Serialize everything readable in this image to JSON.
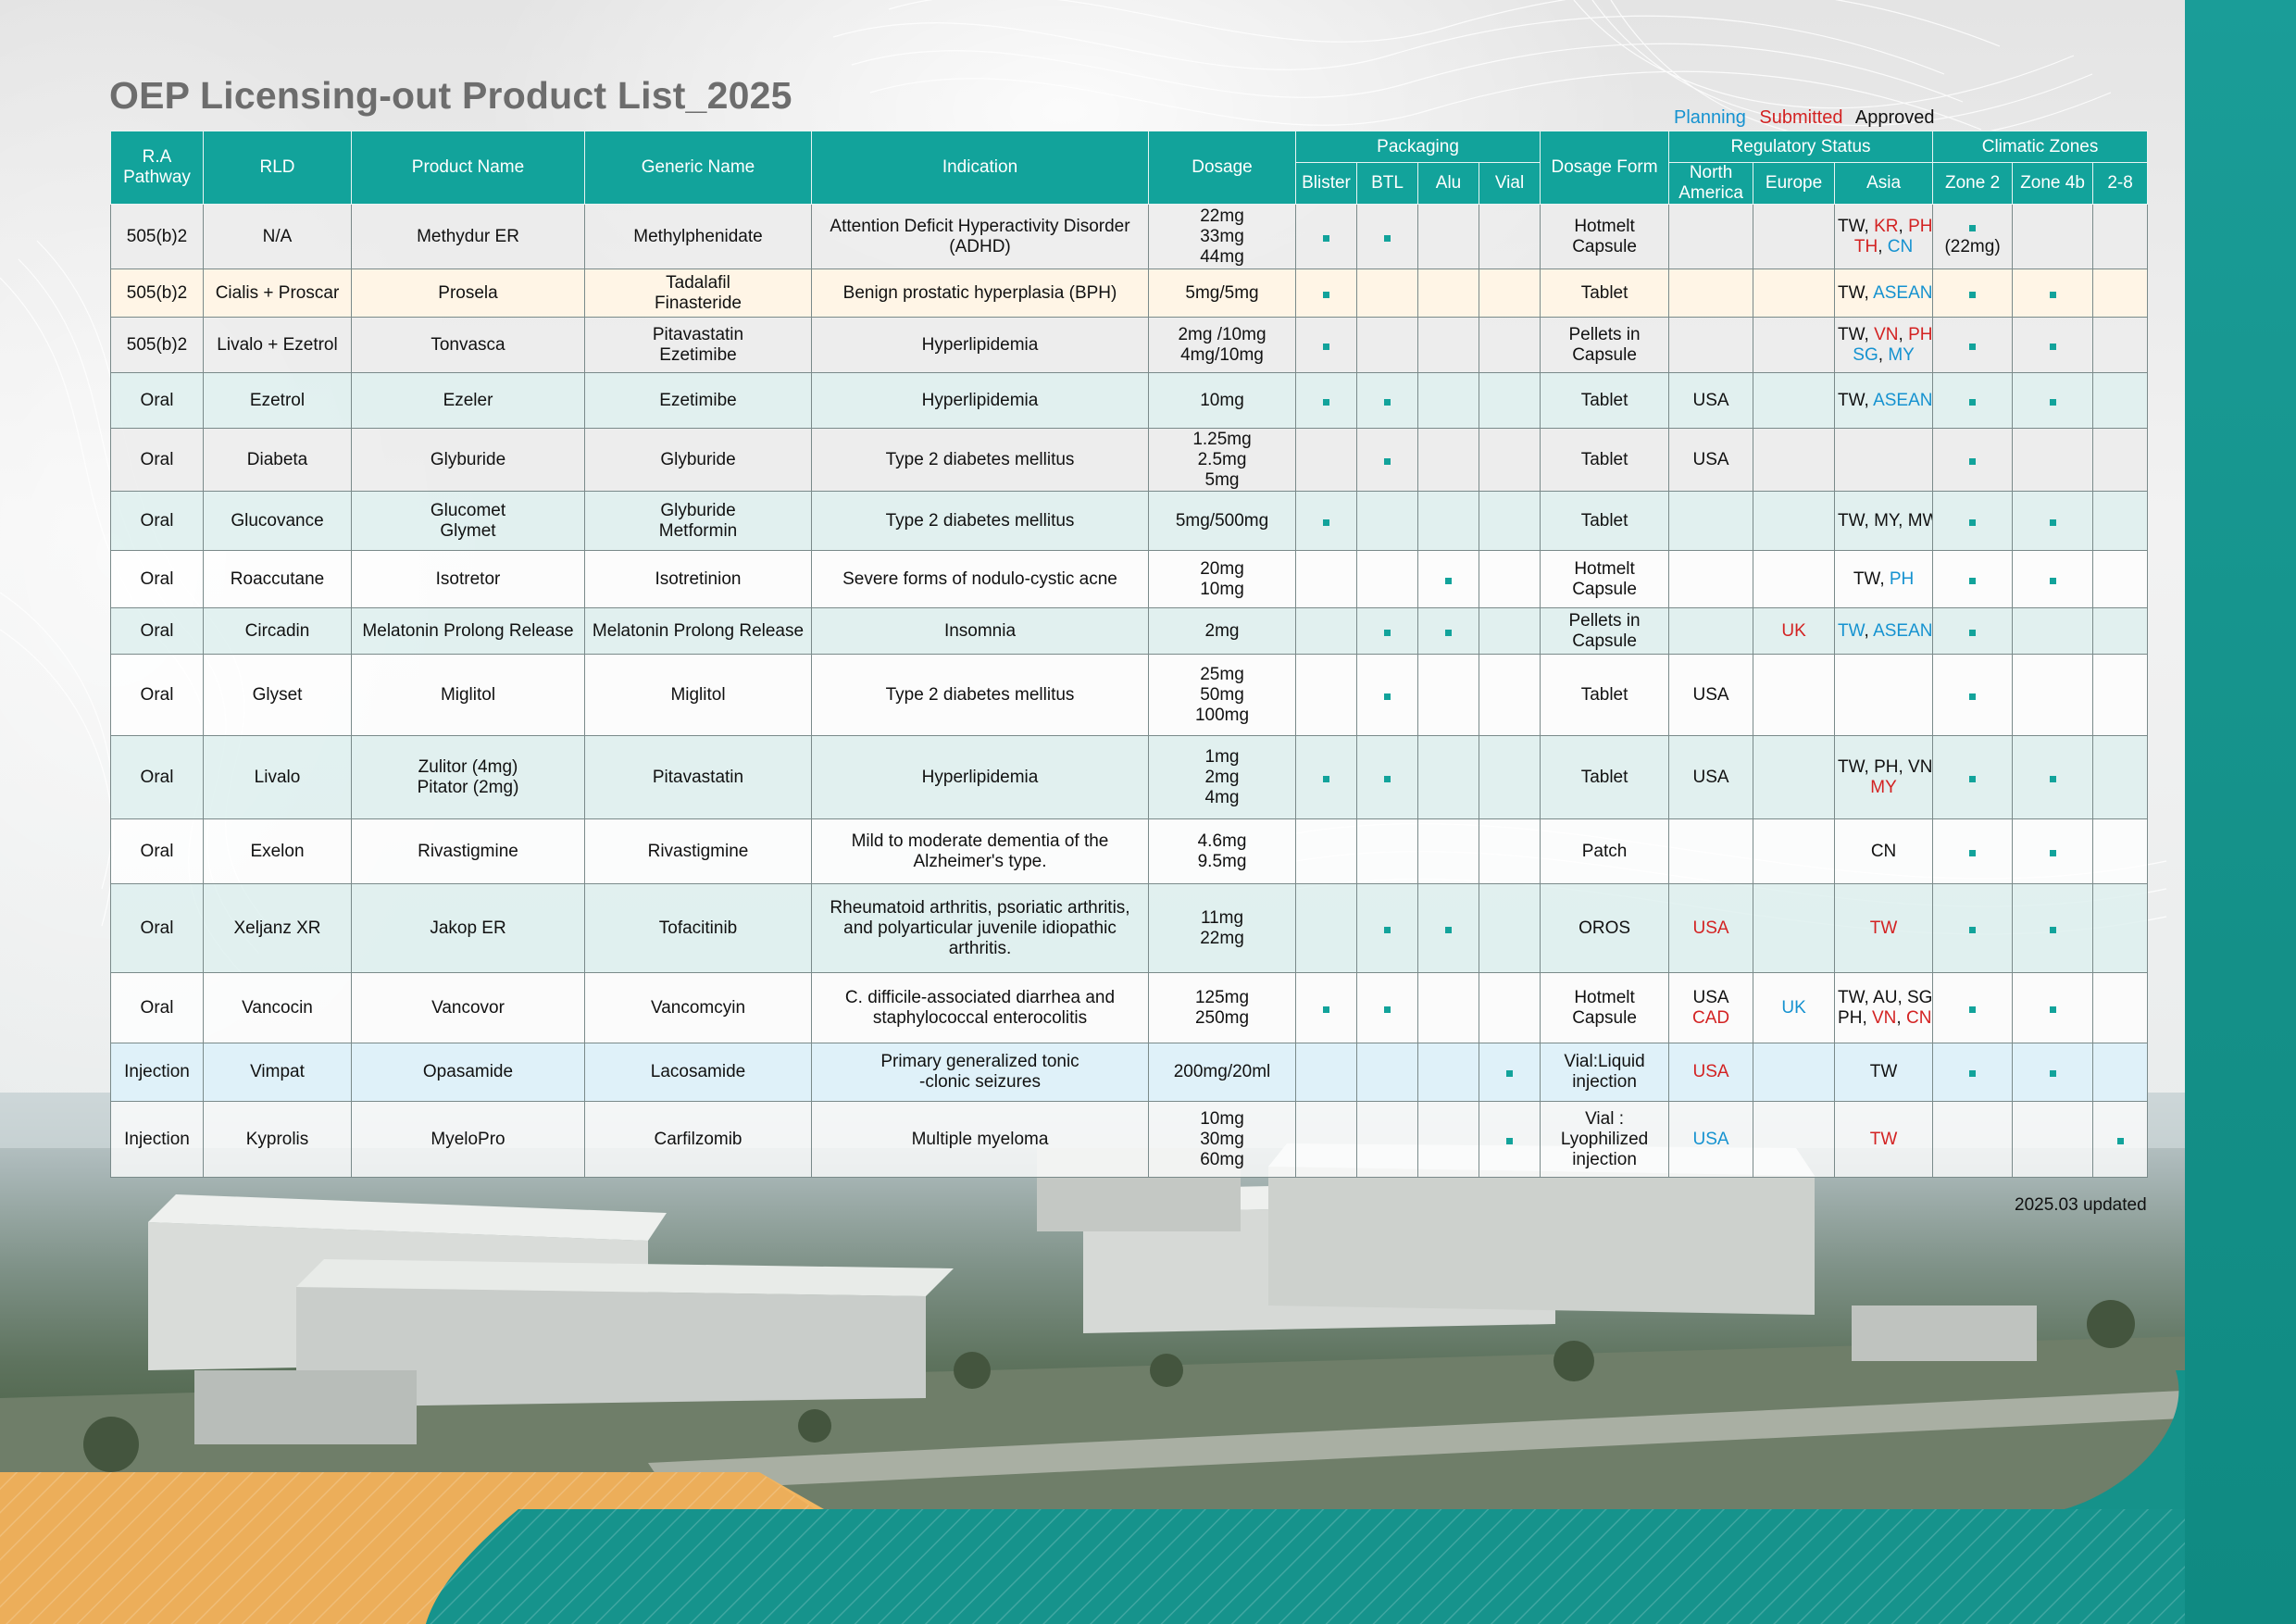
{
  "title": "OEP Licensing-out Product List_2025",
  "legend": {
    "planning": "Planning",
    "submitted": "Submitted",
    "approved": "Approved",
    "colors": {
      "planning": "#1592d0",
      "submitted": "#d32222",
      "approved": "#111111"
    }
  },
  "accent_color": "#12a39b",
  "header": {
    "ra_pathway": "R.A\nPathway",
    "rld": "RLD",
    "product_name": "Product Name",
    "generic_name": "Generic Name",
    "indication": "Indication",
    "dosage": "Dosage",
    "packaging": "Packaging",
    "blister": "Blister",
    "btl": "BTL",
    "alu": "Alu",
    "vial": "Vial",
    "dosage_form": "Dosage Form",
    "regulatory_status": "Regulatory Status",
    "north_america": "North\nAmerica",
    "europe": "Europe",
    "asia": "Asia",
    "climatic_zones": "Climatic Zones",
    "zone2": "Zone 2",
    "zone4b": "Zone 4b",
    "zone28": "2-8"
  },
  "rows": [
    {
      "style": "grey",
      "ra": "505(b)2",
      "rld": "N/A",
      "product": "Methydur  ER",
      "generic": "Methylphenidate",
      "indication": "Attention Deficit Hyperactivity Disorder\n(ADHD)",
      "dosage": "22mg\n33mg\n44mg",
      "blister": true,
      "btl": true,
      "alu": false,
      "vial": false,
      "form": "Hotmelt\nCapsule",
      "na": [],
      "eu": [],
      "asia": [
        [
          [
            "TW",
            "a"
          ],
          [
            ", ",
            "a"
          ],
          [
            "KR",
            "s"
          ],
          [
            ", ",
            "a"
          ],
          [
            "PH",
            "s"
          ],
          [
            ",",
            "a"
          ]
        ],
        [
          [
            "TH",
            "s"
          ],
          [
            ", ",
            "a"
          ],
          [
            "CN",
            "p"
          ]
        ]
      ],
      "zone2": true,
      "zone2_note": "(22mg)",
      "zone4b": false,
      "zone28": false
    },
    {
      "style": "cream",
      "ra": "505(b)2",
      "rld": "Cialis + Proscar",
      "product": "Prosela",
      "generic": "Tadalafil\nFinasteride",
      "indication": "Benign prostatic hyperplasia (BPH)",
      "dosage": "5mg/5mg",
      "blister": true,
      "btl": false,
      "alu": false,
      "vial": false,
      "form": "Tablet",
      "na": [],
      "eu": [],
      "asia": [
        [
          [
            "TW",
            "a"
          ],
          [
            ", ",
            "a"
          ],
          [
            "ASEAN",
            "p"
          ]
        ]
      ],
      "zone2": true,
      "zone2_note": "",
      "zone4b": true,
      "zone28": false
    },
    {
      "style": "grey",
      "ra": "505(b)2",
      "rld": "Livalo + Ezetrol",
      "product": "Tonvasca",
      "generic": "Pitavastatin\nEzetimibe",
      "indication": "Hyperlipidemia",
      "dosage": "2mg /10mg\n4mg/10mg",
      "blister": true,
      "btl": false,
      "alu": false,
      "vial": false,
      "form": "Pellets in\nCapsule",
      "na": [],
      "eu": [],
      "asia": [
        [
          [
            "TW",
            "a"
          ],
          [
            ", ",
            "a"
          ],
          [
            "VN",
            "s"
          ],
          [
            ", ",
            "a"
          ],
          [
            "PH",
            "s"
          ]
        ],
        [
          [
            "SG",
            "p"
          ],
          [
            ", ",
            "a"
          ],
          [
            "MY",
            "p"
          ]
        ]
      ],
      "zone2": true,
      "zone2_note": "",
      "zone4b": true,
      "zone28": false
    },
    {
      "style": "tint",
      "ra": "Oral",
      "rld": "Ezetrol",
      "product": "Ezeler",
      "generic": "Ezetimibe",
      "indication": "Hyperlipidemia",
      "dosage": "10mg",
      "blister": true,
      "btl": true,
      "alu": false,
      "vial": false,
      "form": "Tablet",
      "na": [
        [
          [
            "USA",
            "a"
          ]
        ]
      ],
      "eu": [],
      "asia": [
        [
          [
            "TW",
            "a"
          ],
          [
            ", ",
            "a"
          ],
          [
            "ASEAN",
            "p"
          ]
        ]
      ],
      "zone2": true,
      "zone2_note": "",
      "zone4b": true,
      "zone28": false
    },
    {
      "style": "grey",
      "ra": "Oral",
      "rld": "Diabeta",
      "product": "Glyburide",
      "generic": "Glyburide",
      "indication": "Type 2 diabetes mellitus",
      "dosage": "1.25mg\n2.5mg\n5mg",
      "blister": false,
      "btl": true,
      "alu": false,
      "vial": false,
      "form": "Tablet",
      "na": [
        [
          [
            "USA",
            "a"
          ]
        ]
      ],
      "eu": [],
      "asia": [],
      "zone2": true,
      "zone2_note": "",
      "zone4b": false,
      "zone28": false
    },
    {
      "style": "tint",
      "ra": "Oral",
      "rld": "Glucovance",
      "product": "Glucomet\nGlymet",
      "generic": "Glyburide\nMetformin",
      "indication": "Type 2 diabetes mellitus",
      "dosage": "5mg/500mg",
      "blister": true,
      "btl": false,
      "alu": false,
      "vial": false,
      "form": "Tablet",
      "na": [],
      "eu": [],
      "asia": [
        [
          [
            "TW, MY, MW",
            "a"
          ]
        ]
      ],
      "zone2": true,
      "zone2_note": "",
      "zone4b": true,
      "zone28": false
    },
    {
      "style": "plain",
      "ra": "Oral",
      "rld": "Roaccutane",
      "product": "Isotretor",
      "generic": "Isotretinion",
      "indication": "Severe forms of nodulo-cystic acne",
      "dosage": "20mg\n10mg",
      "blister": false,
      "btl": false,
      "alu": true,
      "vial": false,
      "form": "Hotmelt\nCapsule",
      "na": [],
      "eu": [],
      "asia": [
        [
          [
            "TW",
            "a"
          ],
          [
            ", ",
            "a"
          ],
          [
            "PH",
            "p"
          ]
        ]
      ],
      "zone2": true,
      "zone2_note": "",
      "zone4b": true,
      "zone28": false
    },
    {
      "style": "tint",
      "ra": "Oral",
      "rld": "Circadin",
      "product": "Melatonin Prolong Release",
      "generic": "Melatonin Prolong Release",
      "indication": "Insomnia",
      "dosage": "2mg",
      "blister": false,
      "btl": true,
      "alu": true,
      "vial": false,
      "form": "Pellets in\nCapsule",
      "na": [],
      "eu": [
        [
          [
            "UK",
            "s"
          ]
        ]
      ],
      "asia": [
        [
          [
            "TW",
            "p"
          ],
          [
            ", ",
            "a"
          ],
          [
            "ASEAN",
            "p"
          ]
        ]
      ],
      "zone2": true,
      "zone2_note": "",
      "zone4b": false,
      "zone28": false
    },
    {
      "style": "plain",
      "ra": "Oral",
      "rld": "Glyset",
      "product": "Miglitol",
      "generic": "Miglitol",
      "indication": "Type 2 diabetes mellitus",
      "dosage": "25mg\n50mg\n100mg",
      "blister": false,
      "btl": true,
      "alu": false,
      "vial": false,
      "form": "Tablet",
      "na": [
        [
          [
            "USA",
            "a"
          ]
        ]
      ],
      "eu": [],
      "asia": [],
      "zone2": true,
      "zone2_note": "",
      "zone4b": false,
      "zone28": false
    },
    {
      "style": "tint",
      "ra": "Oral",
      "rld": "Livalo",
      "product": "Zulitor (4mg)\nPitator (2mg)",
      "generic": "Pitavastatin",
      "indication": "Hyperlipidemia",
      "dosage": "1mg\n2mg\n4mg",
      "blister": true,
      "btl": true,
      "alu": false,
      "vial": false,
      "form": "Tablet",
      "na": [
        [
          [
            "USA",
            "a"
          ]
        ]
      ],
      "eu": [],
      "asia": [
        [
          [
            "TW, PH, VN",
            "a"
          ]
        ],
        [
          [
            "MY",
            "s"
          ]
        ]
      ],
      "zone2": true,
      "zone2_note": "",
      "zone4b": true,
      "zone28": false
    },
    {
      "style": "plain",
      "ra": "Oral",
      "rld": "Exelon",
      "product": "Rivastigmine",
      "generic": "Rivastigmine",
      "indication": "Mild to moderate dementia of the\nAlzheimer's type.",
      "dosage": "4.6mg\n9.5mg",
      "blister": false,
      "btl": false,
      "alu": false,
      "vial": false,
      "form": "Patch",
      "na": [],
      "eu": [],
      "asia": [
        [
          [
            "CN",
            "a"
          ]
        ]
      ],
      "zone2": true,
      "zone2_note": "",
      "zone4b": true,
      "zone28": false
    },
    {
      "style": "tint",
      "ra": "Oral",
      "rld": "Xeljanz XR",
      "product": "Jakop ER",
      "generic": "Tofacitinib",
      "indication": "Rheumatoid arthritis, psoriatic arthritis,\nand polyarticular juvenile idiopathic\narthritis.",
      "dosage": "11mg\n22mg",
      "blister": false,
      "btl": true,
      "alu": true,
      "vial": false,
      "form": "OROS",
      "na": [
        [
          [
            "USA",
            "s"
          ]
        ]
      ],
      "eu": [],
      "asia": [
        [
          [
            "TW",
            "s"
          ]
        ]
      ],
      "zone2": true,
      "zone2_note": "",
      "zone4b": true,
      "zone28": false
    },
    {
      "style": "plain",
      "ra": "Oral",
      "rld": "Vancocin",
      "product": "Vancovor",
      "generic": "Vancomcyin",
      "indication": "C. difficile-associated diarrhea and\nstaphylococcal enterocolitis",
      "dosage": "125mg\n250mg",
      "blister": true,
      "btl": true,
      "alu": false,
      "vial": false,
      "form": "Hotmelt\nCapsule",
      "na": [
        [
          [
            "USA",
            "a"
          ]
        ],
        [
          [
            "CAD",
            "s"
          ]
        ]
      ],
      "eu": [
        [
          [
            "UK",
            "p"
          ]
        ]
      ],
      "asia": [
        [
          [
            "TW, AU, SG,",
            "a"
          ]
        ],
        [
          [
            "PH, ",
            "a"
          ],
          [
            "VN",
            "s"
          ],
          [
            ", ",
            "a"
          ],
          [
            "CN",
            "s"
          ]
        ]
      ],
      "zone2": true,
      "zone2_note": "",
      "zone4b": true,
      "zone28": false
    },
    {
      "style": "blue",
      "ra": "Injection",
      "rld": "Vimpat",
      "product": "Opasamide",
      "generic": "Lacosamide",
      "indication": "Primary generalized tonic\n-clonic seizures",
      "dosage": "200mg/20ml",
      "blister": false,
      "btl": false,
      "alu": false,
      "vial": true,
      "form": "Vial:Liquid\ninjection",
      "na": [
        [
          [
            "USA",
            "s"
          ]
        ]
      ],
      "eu": [],
      "asia": [
        [
          [
            "TW",
            "a"
          ]
        ]
      ],
      "zone2": true,
      "zone2_note": "",
      "zone4b": true,
      "zone28": false
    },
    {
      "style": "plain",
      "ra": "Injection",
      "rld": "Kyprolis",
      "product": "MyeloPro",
      "generic": "Carfilzomib",
      "indication": "Multiple myeloma",
      "dosage": "10mg\n30mg\n60mg",
      "blister": false,
      "btl": false,
      "alu": false,
      "vial": true,
      "form": "Vial :\nLyophilized\ninjection",
      "na": [
        [
          [
            "USA",
            "p"
          ]
        ]
      ],
      "eu": [],
      "asia": [
        [
          [
            "TW",
            "s"
          ]
        ]
      ],
      "zone2": false,
      "zone2_note": "",
      "zone4b": false,
      "zone28": true
    }
  ],
  "updated_note": "2025.03 updated"
}
